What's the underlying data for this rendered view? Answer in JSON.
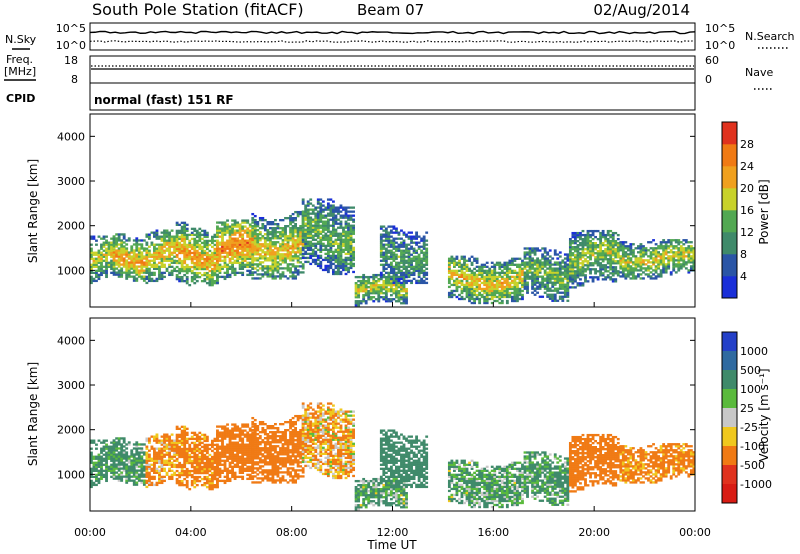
{
  "header": {
    "station": "South Pole Station (fitACF)",
    "beam": "Beam 07",
    "date": "02/Aug/2014"
  },
  "nsky": {
    "label": "N.Sky",
    "tick_top": "10^5",
    "tick_bottom": "10^0",
    "right_label": "N.Search",
    "right_tick_top": "10^5",
    "right_tick_bottom": "10^0"
  },
  "freq": {
    "label_line1": "Freq.",
    "label_line2": "[MHz]",
    "tick_top": "18",
    "tick_bottom": "8",
    "right_label": "Nave",
    "right_tick_top": "60",
    "right_tick_bottom": "0"
  },
  "cpid": {
    "label": "CPID",
    "text": "normal (fast) 151 RF"
  },
  "x_axis": {
    "title": "Time UT",
    "ticks": [
      "00:00",
      "04:00",
      "08:00",
      "12:00",
      "16:00",
      "20:00",
      "00:00"
    ]
  },
  "y_axis": {
    "title": "Slant Range [km]",
    "ticks": [
      "1000",
      "2000",
      "3000",
      "4000"
    ]
  },
  "power_scale": {
    "title": "Power [dB]",
    "ticks": [
      "4",
      "8",
      "12",
      "16",
      "20",
      "24",
      "28"
    ],
    "colors": [
      "#1a2fd8",
      "#2a55a6",
      "#3f8a6a",
      "#52a852",
      "#c8d22a",
      "#f0a01e",
      "#f07a14",
      "#e0321e"
    ]
  },
  "velocity_scale": {
    "title": "Velocity [m s⁻¹]",
    "ticks": [
      "1000",
      "500",
      "100",
      "25",
      "-25",
      "-100",
      "-500",
      "-1000"
    ],
    "colors": [
      "#2440c8",
      "#2f6aa0",
      "#3f8a6a",
      "#5aba3c",
      "#c8c8c8",
      "#f0c81e",
      "#f07a14",
      "#e0321e",
      "#d81c14"
    ]
  },
  "chart_data": {
    "type": "heatmap",
    "x_unit": "hours UT",
    "x_range": [
      0,
      24
    ],
    "y_range": [
      180,
      4500
    ],
    "power_range_db": [
      0,
      30
    ],
    "velocity_range": [
      -1000,
      1000
    ],
    "echo_regions": [
      {
        "t0": 0.0,
        "t1": 0.9,
        "r0": 700,
        "r1": 1750,
        "power": 18,
        "velocity": 200
      },
      {
        "t0": 0.9,
        "t1": 2.2,
        "r0": 750,
        "r1": 1800,
        "power": 22,
        "velocity": 150
      },
      {
        "t0": 2.2,
        "t1": 3.4,
        "r0": 700,
        "r1": 1900,
        "power": 20,
        "velocity": -150
      },
      {
        "t0": 3.4,
        "t1": 5.0,
        "r0": 650,
        "r1": 2050,
        "power": 22,
        "velocity": -200
      },
      {
        "t0": 5.0,
        "t1": 6.4,
        "r0": 700,
        "r1": 2100,
        "power": 24,
        "velocity": -300
      },
      {
        "t0": 6.4,
        "t1": 8.4,
        "r0": 800,
        "r1": 2300,
        "power": 20,
        "velocity": -250
      },
      {
        "t0": 8.4,
        "t1": 10.4,
        "r0": 900,
        "r1": 2600,
        "power": 14,
        "velocity": -100
      },
      {
        "t0": 10.5,
        "t1": 12.5,
        "r0": 200,
        "r1": 900,
        "power": 18,
        "velocity": 120
      },
      {
        "t0": 11.5,
        "t1": 13.3,
        "r0": 700,
        "r1": 2000,
        "power": 12,
        "velocity": 300
      },
      {
        "t0": 14.2,
        "t1": 17.2,
        "r0": 250,
        "r1": 1300,
        "power": 20,
        "velocity": 120
      },
      {
        "t0": 17.2,
        "t1": 19.0,
        "r0": 300,
        "r1": 1500,
        "power": 14,
        "velocity": 150
      },
      {
        "t0": 19.0,
        "t1": 21.0,
        "r0": 600,
        "r1": 1900,
        "power": 16,
        "velocity": -250
      },
      {
        "t0": 21.0,
        "t1": 24.0,
        "r0": 800,
        "r1": 1700,
        "power": 18,
        "velocity": -200
      }
    ]
  }
}
